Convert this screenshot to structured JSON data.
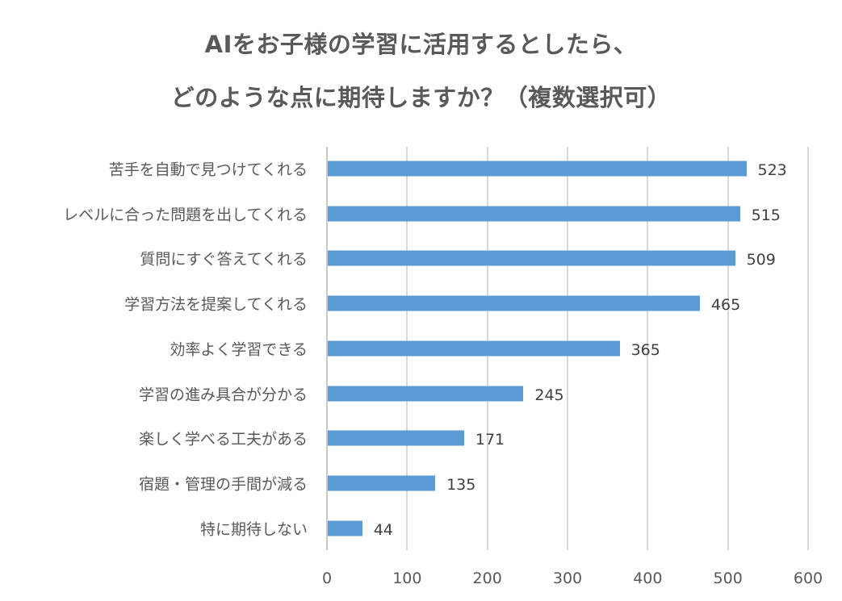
{
  "title": {
    "line1": "AIをお子様の学習に活用するとしたら、",
    "line2": "どのような点に期待しますか？（複数選択可）"
  },
  "colors": {
    "bar": "#5b9bd5",
    "grid": "#d9d9d9",
    "text": "#595959"
  },
  "chart_data": {
    "type": "bar",
    "orientation": "horizontal",
    "title": "AIをお子様の学習に活用するとしたら、どのような点に期待しますか？（複数選択可）",
    "categories": [
      "苦手を自動で見つけてくれる",
      "レベルに合った問題を出してくれる",
      "質問にすぐ答えてくれる",
      "学習方法を提案してくれる",
      "効率よく学習できる",
      "学習の進み具合が分かる",
      "楽しく学べる工夫がある",
      "宿題・管理の手間が減る",
      "特に期待しない"
    ],
    "values": [
      523,
      515,
      509,
      465,
      365,
      245,
      171,
      135,
      44
    ],
    "xlabel": "",
    "ylabel": "",
    "xlim": [
      0,
      600
    ],
    "xticks": [
      "0",
      "100",
      "200",
      "300",
      "400",
      "500",
      "600"
    ],
    "grid": true,
    "data_labels": true,
    "legend": null
  }
}
